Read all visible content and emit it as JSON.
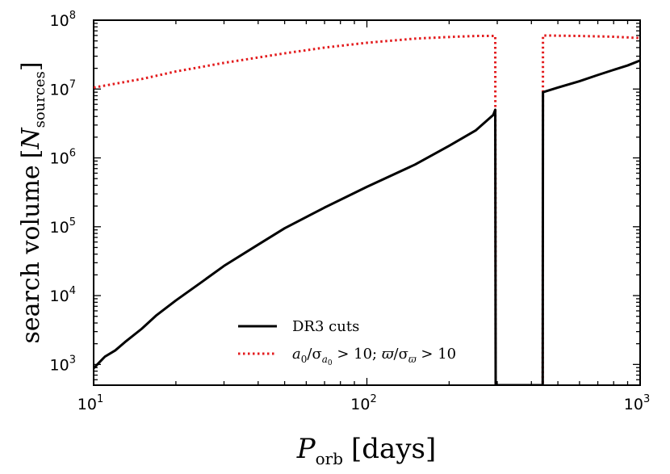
{
  "chart_data": {
    "type": "line",
    "xscale": "log",
    "yscale": "log",
    "xlim": [
      10,
      1000
    ],
    "ylim": [
      500,
      100000000
    ],
    "xlabel": {
      "main": "P",
      "sub": "orb",
      "unit": "[days]"
    },
    "ylabel": {
      "main": "search volume",
      "var": "N",
      "sub": "sources"
    },
    "x_ticks": [
      {
        "base": "10",
        "exp": "1",
        "value": 10
      },
      {
        "base": "10",
        "exp": "2",
        "value": 100
      },
      {
        "base": "10",
        "exp": "3",
        "value": 1000
      }
    ],
    "y_ticks": [
      {
        "base": "10",
        "exp": "3",
        "value": 1000
      },
      {
        "base": "10",
        "exp": "4",
        "value": 10000
      },
      {
        "base": "10",
        "exp": "5",
        "value": 100000
      },
      {
        "base": "10",
        "exp": "6",
        "value": 1000000
      },
      {
        "base": "10",
        "exp": "7",
        "value": 10000000
      },
      {
        "base": "10",
        "exp": "8",
        "value": 100000000
      }
    ],
    "series": [
      {
        "name": "DR3 cuts",
        "color": "#000000",
        "style": "solid",
        "points": [
          [
            10,
            880
          ],
          [
            11,
            1300
          ],
          [
            12,
            1600
          ],
          [
            13,
            2100
          ],
          [
            15,
            3300
          ],
          [
            17,
            5200
          ],
          [
            20,
            8500
          ],
          [
            25,
            16000
          ],
          [
            30,
            27000
          ],
          [
            40,
            55000
          ],
          [
            50,
            95000
          ],
          [
            70,
            190000
          ],
          [
            100,
            380000
          ],
          [
            150,
            800000
          ],
          [
            200,
            1500000
          ],
          [
            250,
            2500000
          ],
          [
            290,
            4200000
          ],
          [
            295,
            5000000
          ],
          [
            296,
            500
          ],
          [
            440,
            500
          ],
          [
            441,
            9000000
          ],
          [
            500,
            10500000
          ],
          [
            600,
            13000000
          ],
          [
            700,
            16000000
          ],
          [
            800,
            19000000
          ],
          [
            900,
            22000000
          ],
          [
            1000,
            26000000
          ]
        ]
      },
      {
        "name": "a0/σa0 > 10;  ϖ/σϖ > 10",
        "color": "#e31a1c",
        "style": "dotted",
        "points": [
          [
            10,
            10500000
          ],
          [
            15,
            14000000
          ],
          [
            20,
            18000000
          ],
          [
            30,
            24000000
          ],
          [
            50,
            33000000
          ],
          [
            70,
            40000000
          ],
          [
            100,
            47000000
          ],
          [
            150,
            54000000
          ],
          [
            200,
            57000000
          ],
          [
            250,
            59000000
          ],
          [
            295,
            59000000
          ],
          [
            296,
            500
          ],
          [
            440,
            500
          ],
          [
            441,
            60000000
          ],
          [
            600,
            59000000
          ],
          [
            800,
            57500000
          ],
          [
            1000,
            55000000
          ]
        ]
      }
    ],
    "legend": {
      "position": "lower-center",
      "entries": [
        {
          "label": "DR3 cuts"
        },
        {
          "label_parts": [
            "a",
            "0",
            "/σ",
            "a",
            "0",
            " > 10;  ",
            "ϖ",
            "/σ",
            "ϖ",
            " > 10"
          ]
        }
      ]
    }
  }
}
